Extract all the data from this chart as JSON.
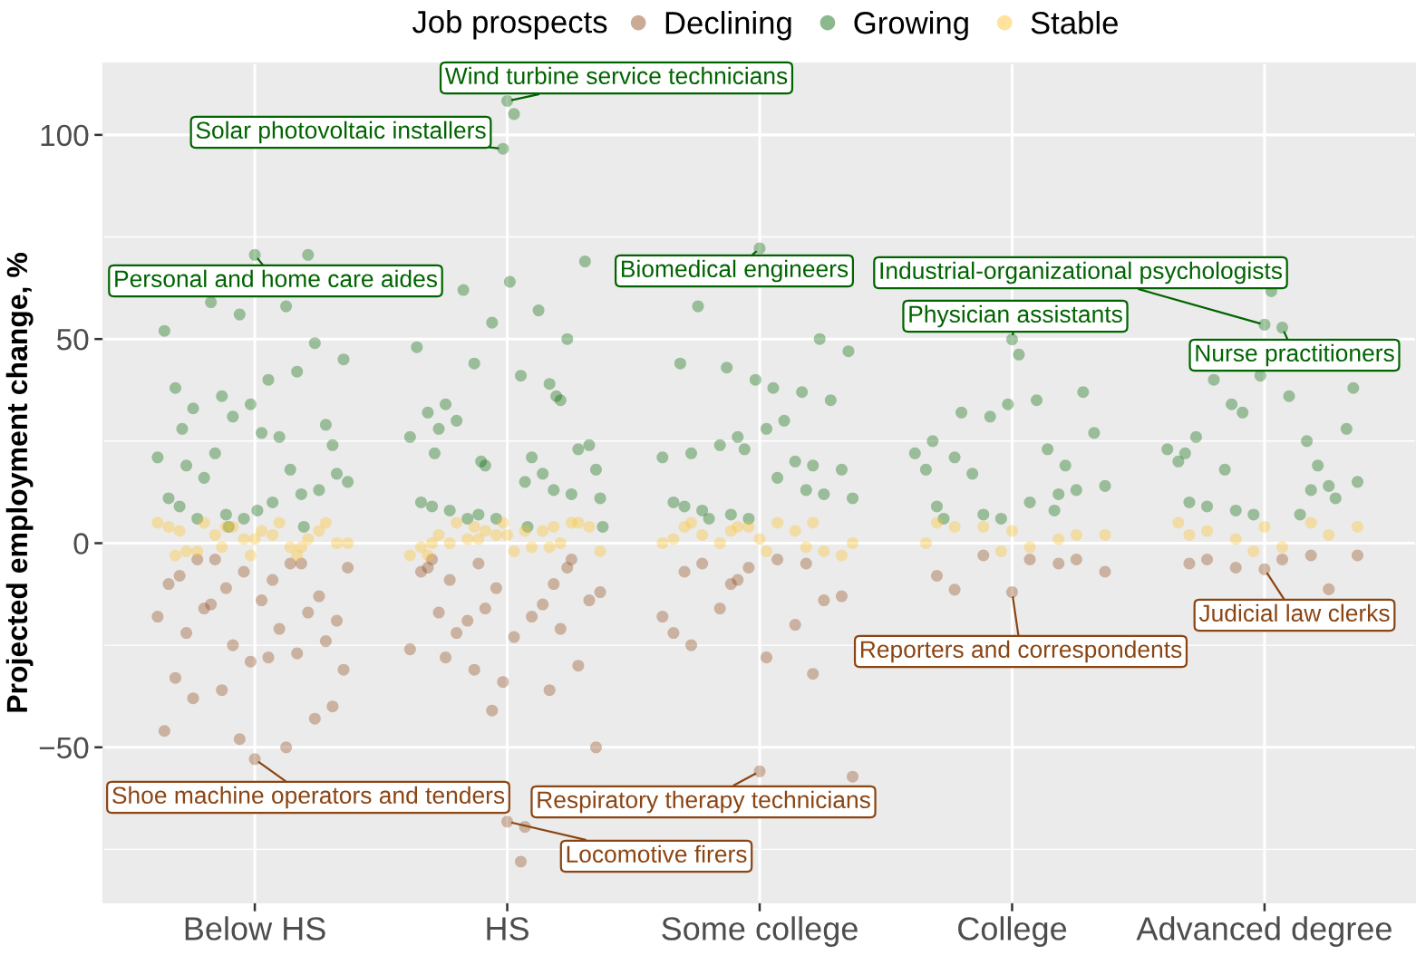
{
  "chart_data": {
    "type": "scatter",
    "ylabel": "Projected employment change, %",
    "legend_title": "Job prospects",
    "legend": "top",
    "grid": true,
    "marker": "circle",
    "categories": [
      "Below HS",
      "HS",
      "Some college",
      "College",
      "Advanced degree"
    ],
    "ylim": [
      -88,
      117.5
    ],
    "yticks": [
      {
        "value": -50,
        "label": "−50"
      },
      0,
      50,
      100
    ],
    "series": [
      {
        "name": "Declining",
        "color": "#8b4513",
        "x": [
          "Below HS",
          "Below HS",
          "Below HS",
          "Below HS",
          "Below HS",
          "Below HS",
          "Below HS",
          "Below HS",
          "Below HS",
          "Below HS",
          "Below HS",
          "Below HS",
          "Below HS",
          "Below HS",
          "Below HS",
          "Below HS",
          "Below HS",
          "Below HS",
          "Below HS",
          "Below HS",
          "Below HS",
          "Below HS",
          "Below HS",
          "Below HS",
          "Below HS",
          "Below HS",
          "Below HS",
          "Below HS",
          "Below HS",
          "Below HS",
          "Below HS",
          "Below HS",
          "Below HS",
          "Below HS",
          "HS",
          "HS",
          "HS",
          "HS",
          "HS",
          "HS",
          "HS",
          "HS",
          "HS",
          "HS",
          "HS",
          "HS",
          "HS",
          "HS",
          "HS",
          "HS",
          "HS",
          "HS",
          "HS",
          "HS",
          "HS",
          "HS",
          "HS",
          "HS",
          "HS",
          "HS",
          "HS",
          "HS",
          "HS",
          "HS",
          "Some college",
          "Some college",
          "Some college",
          "Some college",
          "Some college",
          "Some college",
          "Some college",
          "Some college",
          "Some college",
          "Some college",
          "Some college",
          "Some college",
          "Some college",
          "Some college",
          "Some college",
          "Some college",
          "Some college",
          "Some college",
          "College",
          "College",
          "College",
          "College",
          "College",
          "College",
          "College",
          "College",
          "Advanced degree",
          "Advanced degree",
          "Advanced degree",
          "Advanced degree",
          "Advanced degree",
          "Advanced degree",
          "Advanced degree",
          "Advanced degree"
        ],
        "values": [
          -52.9,
          -8,
          -5,
          -11,
          -6,
          -9,
          -4,
          -13,
          -7,
          -10,
          -5,
          -4,
          -19,
          -14,
          -22,
          -17,
          -25,
          -18,
          -21,
          -16,
          -24,
          -29,
          -33,
          -27,
          -36,
          -31,
          -28,
          -38,
          -43,
          -48,
          -46,
          -50,
          -15,
          -40,
          -68.2,
          -4,
          -10,
          -5,
          -12,
          -69.5,
          -9,
          -4,
          -11,
          -7,
          -15,
          -19,
          -14,
          -23,
          -17,
          -21,
          -16,
          -26,
          -18,
          -22,
          -30,
          -34,
          -6,
          -36,
          -31,
          -50,
          -78.0,
          -28,
          -6,
          -41,
          -55.9,
          -7,
          -5,
          -10,
          -57.2,
          -4,
          -5,
          -14,
          -6,
          -22,
          -20,
          -16,
          -13,
          -28,
          -25,
          -32,
          -9,
          -18,
          -12.0,
          -8,
          -5,
          -3,
          -7,
          -4,
          -11.4,
          -4,
          -6.4,
          -5,
          -3,
          -6,
          -3,
          -4,
          -4,
          -11.3
        ]
      },
      {
        "name": "Growing",
        "color": "#006400",
        "x": [
          "Below HS",
          "Below HS",
          "Below HS",
          "Below HS",
          "Below HS",
          "Below HS",
          "Below HS",
          "Below HS",
          "Below HS",
          "Below HS",
          "Below HS",
          "Below HS",
          "Below HS",
          "Below HS",
          "Below HS",
          "Below HS",
          "Below HS",
          "Below HS",
          "Below HS",
          "Below HS",
          "Below HS",
          "Below HS",
          "Below HS",
          "Below HS",
          "Below HS",
          "Below HS",
          "Below HS",
          "Below HS",
          "Below HS",
          "Below HS",
          "Below HS",
          "Below HS",
          "Below HS",
          "Below HS",
          "Below HS",
          "Below HS",
          "Below HS",
          "Below HS",
          "HS",
          "HS",
          "HS",
          "HS",
          "HS",
          "HS",
          "HS",
          "HS",
          "HS",
          "HS",
          "HS",
          "HS",
          "HS",
          "HS",
          "HS",
          "HS",
          "HS",
          "HS",
          "HS",
          "HS",
          "HS",
          "HS",
          "HS",
          "HS",
          "HS",
          "HS",
          "HS",
          "HS",
          "HS",
          "HS",
          "HS",
          "HS",
          "HS",
          "HS",
          "HS",
          "HS",
          "HS",
          "HS",
          "HS",
          "HS",
          "Some college",
          "Some college",
          "Some college",
          "Some college",
          "Some college",
          "Some college",
          "Some college",
          "Some college",
          "Some college",
          "Some college",
          "Some college",
          "Some college",
          "Some college",
          "Some college",
          "Some college",
          "Some college",
          "Some college",
          "Some college",
          "Some college",
          "Some college",
          "Some college",
          "Some college",
          "Some college",
          "Some college",
          "Some college",
          "Some college",
          "Some college",
          "Some college",
          "Some college",
          "Some college",
          "College",
          "College",
          "College",
          "College",
          "College",
          "College",
          "College",
          "College",
          "College",
          "College",
          "College",
          "College",
          "College",
          "College",
          "College",
          "College",
          "College",
          "College",
          "College",
          "College",
          "College",
          "College",
          "College",
          "College",
          "Advanced degree",
          "Advanced degree",
          "Advanced degree",
          "Advanced degree",
          "Advanced degree",
          "Advanced degree",
          "Advanced degree",
          "Advanced degree",
          "Advanced degree",
          "Advanced degree",
          "Advanced degree",
          "Advanced degree",
          "Advanced degree",
          "Advanced degree",
          "Advanced degree",
          "Advanced degree",
          "Advanced degree",
          "Advanced degree",
          "Advanced degree",
          "Advanced degree",
          "Advanced degree",
          "Advanced degree",
          "Advanced degree",
          "Advanced degree",
          "Advanced degree",
          "Advanced degree"
        ],
        "values": [
          70.6,
          9,
          12,
          7,
          15,
          10,
          6,
          13,
          6,
          11,
          18,
          22,
          17,
          27,
          19,
          70.6,
          31,
          21,
          26,
          16,
          29,
          34,
          38,
          42,
          36,
          45,
          40,
          33,
          49,
          56,
          52,
          58,
          59,
          24,
          8,
          28,
          4,
          4,
          108.3,
          9,
          13,
          7,
          11,
          15,
          8,
          12,
          6,
          10,
          17,
          6,
          24,
          105.1,
          28,
          35,
          19,
          26,
          21,
          30,
          23,
          96.6,
          32,
          39,
          44,
          18,
          41,
          34,
          50,
          54,
          48,
          57,
          62,
          69,
          64,
          22,
          36,
          20,
          4,
          4,
          72.2,
          9,
          13,
          7,
          11,
          16,
          8,
          12,
          6,
          10,
          20,
          24,
          18,
          28,
          22,
          19,
          26,
          21,
          30,
          6,
          35,
          40,
          44,
          37,
          43,
          47,
          38,
          58,
          50,
          23,
          49.9,
          9,
          12,
          7,
          14,
          10,
          21,
          13,
          6,
          18,
          23,
          17,
          27,
          46.2,
          6,
          19,
          31,
          22,
          35,
          32,
          37,
          34,
          25,
          8,
          53.5,
          10,
          13,
          8,
          15,
          52.8,
          9,
          14,
          7,
          20,
          7,
          18,
          28,
          61.7,
          26,
          19,
          32,
          23,
          36,
          40,
          11,
          41,
          22,
          25,
          34,
          38
        ]
      },
      {
        "name": "Stable",
        "color": "#ffc125",
        "x": [
          "Below HS",
          "Below HS",
          "Below HS",
          "Below HS",
          "Below HS",
          "Below HS",
          "Below HS",
          "Below HS",
          "Below HS",
          "Below HS",
          "Below HS",
          "Below HS",
          "Below HS",
          "Below HS",
          "Below HS",
          "Below HS",
          "Below HS",
          "Below HS",
          "Below HS",
          "Below HS",
          "Below HS",
          "Below HS",
          "Below HS",
          "Below HS",
          "Below HS",
          "HS",
          "HS",
          "HS",
          "HS",
          "HS",
          "HS",
          "HS",
          "HS",
          "HS",
          "HS",
          "HS",
          "HS",
          "HS",
          "HS",
          "HS",
          "HS",
          "HS",
          "HS",
          "HS",
          "HS",
          "HS",
          "HS",
          "HS",
          "HS",
          "HS",
          "Some college",
          "Some college",
          "Some college",
          "Some college",
          "Some college",
          "Some college",
          "Some college",
          "Some college",
          "Some college",
          "Some college",
          "Some college",
          "Some college",
          "Some college",
          "Some college",
          "Some college",
          "Some college",
          "Some college",
          "Some college",
          "College",
          "College",
          "College",
          "College",
          "College",
          "College",
          "College",
          "College",
          "College",
          "College",
          "Advanced degree",
          "Advanced degree",
          "Advanced degree",
          "Advanced degree",
          "Advanced degree",
          "Advanced degree",
          "Advanced degree",
          "Advanced degree",
          "Advanced degree",
          "Advanced degree"
        ],
        "values": [
          1,
          3,
          -1,
          4,
          0,
          2,
          -2,
          3,
          1,
          4,
          -1,
          2,
          0,
          3,
          -2,
          1,
          4,
          5,
          5,
          5,
          5,
          -3,
          -3,
          -3,
          -1,
          2,
          0,
          4,
          1,
          -2,
          3,
          0,
          5,
          2,
          -1,
          3,
          1,
          4,
          -2,
          2,
          0,
          3,
          -3,
          -1,
          5,
          5,
          5,
          -3,
          -1,
          4,
          1,
          4,
          -1,
          3,
          0,
          5,
          2,
          -2,
          4,
          1,
          3,
          0,
          -3,
          -2,
          5,
          5,
          4,
          0,
          3,
          5,
          1,
          4,
          2,
          -1,
          4,
          2,
          -2,
          0,
          4,
          2,
          5,
          1,
          4,
          -1,
          3,
          2,
          -2,
          5
        ]
      }
    ],
    "annotations": [
      {
        "text": "Wind turbine service technicians",
        "x": "HS",
        "y": 108.3
      },
      {
        "text": "Solar photovoltaic installers",
        "x": "HS",
        "y": 96.6
      },
      {
        "text": "Personal and home care aides",
        "x": "Below HS",
        "y": 70.6
      },
      {
        "text": "Biomedical engineers",
        "x": "Some college",
        "y": 72.2
      },
      {
        "text": "Industrial-organizational psychologists",
        "x": "Advanced degree",
        "y": 53.5
      },
      {
        "text": "Physician assistants",
        "x": "College",
        "y": 49.9
      },
      {
        "text": "Nurse practitioners",
        "x": "Advanced degree",
        "y": 52.8
      },
      {
        "text": "Judicial law clerks",
        "x": "Advanced degree",
        "y": -6.4
      },
      {
        "text": "Reporters and correspondents",
        "x": "College",
        "y": -12.0
      },
      {
        "text": "Shoe machine operators and tenders",
        "x": "Below HS",
        "y": -52.9
      },
      {
        "text": "Respiratory therapy technicians",
        "x": "Some college",
        "y": -55.9
      },
      {
        "text": "Locomotive firers",
        "x": "HS",
        "y": -68.2
      }
    ]
  }
}
